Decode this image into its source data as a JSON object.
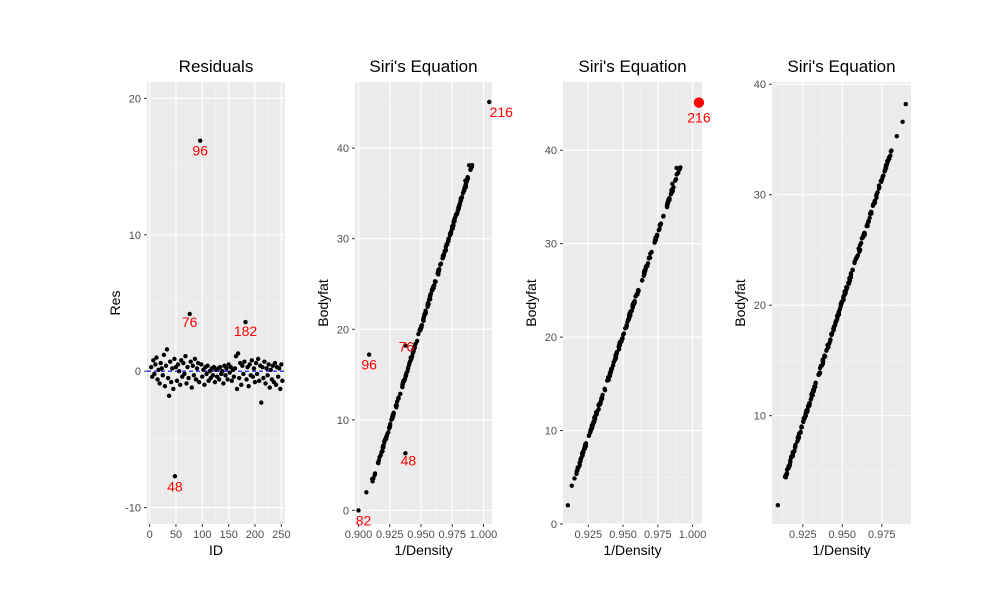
{
  "chart_data": [
    {
      "type": "scatter",
      "title": "Residuals",
      "xlabel": "ID",
      "ylabel": "Res",
      "xlim": [
        -5,
        257
      ],
      "ylim": [
        -11.2,
        21.2
      ],
      "xticks": [
        0,
        50,
        100,
        150,
        200,
        250
      ],
      "yticks": [
        -10,
        0,
        10,
        20
      ],
      "grid": true,
      "hline": {
        "y": 0,
        "style": "dashed",
        "color": "#0000ff"
      },
      "points": [
        {
          "x": 3,
          "y": 0.3
        },
        {
          "x": 5,
          "y": -0.4
        },
        {
          "x": 7,
          "y": 0.8
        },
        {
          "x": 9,
          "y": -0.2
        },
        {
          "x": 11,
          "y": 0.5
        },
        {
          "x": 13,
          "y": 1.0
        },
        {
          "x": 15,
          "y": -0.6
        },
        {
          "x": 17,
          "y": 0.1
        },
        {
          "x": 19,
          "y": -0.9
        },
        {
          "x": 21,
          "y": 0.6
        },
        {
          "x": 23,
          "y": 0.2
        },
        {
          "x": 25,
          "y": -0.3
        },
        {
          "x": 27,
          "y": 1.2
        },
        {
          "x": 29,
          "y": -1.1
        },
        {
          "x": 31,
          "y": 0.4
        },
        {
          "x": 33,
          "y": 1.6
        },
        {
          "x": 35,
          "y": -0.5
        },
        {
          "x": 37,
          "y": -1.8
        },
        {
          "x": 39,
          "y": 0.7
        },
        {
          "x": 41,
          "y": -0.8
        },
        {
          "x": 43,
          "y": 0.2
        },
        {
          "x": 45,
          "y": -1.3
        },
        {
          "x": 47,
          "y": 0.9
        },
        {
          "x": 48,
          "y": -7.7
        },
        {
          "x": 50,
          "y": 0.3
        },
        {
          "x": 52,
          "y": -0.7
        },
        {
          "x": 54,
          "y": 0.5
        },
        {
          "x": 56,
          "y": 0.0
        },
        {
          "x": 58,
          "y": -1.0
        },
        {
          "x": 60,
          "y": 0.8
        },
        {
          "x": 62,
          "y": -0.4
        },
        {
          "x": 64,
          "y": 0.6
        },
        {
          "x": 66,
          "y": -0.2
        },
        {
          "x": 68,
          "y": 1.1
        },
        {
          "x": 70,
          "y": -0.9
        },
        {
          "x": 72,
          "y": 0.3
        },
        {
          "x": 74,
          "y": -0.5
        },
        {
          "x": 76,
          "y": 4.2
        },
        {
          "x": 78,
          "y": 0.7
        },
        {
          "x": 80,
          "y": -1.2
        },
        {
          "x": 82,
          "y": 0.4
        },
        {
          "x": 84,
          "y": -0.3
        },
        {
          "x": 86,
          "y": 0.9
        },
        {
          "x": 88,
          "y": -0.6
        },
        {
          "x": 90,
          "y": 0.2
        },
        {
          "x": 92,
          "y": 0.6
        },
        {
          "x": 94,
          "y": -0.8
        },
        {
          "x": 96,
          "y": 16.9
        },
        {
          "x": 98,
          "y": 0.5
        },
        {
          "x": 100,
          "y": -0.4
        },
        {
          "x": 102,
          "y": 0.1
        },
        {
          "x": 104,
          "y": -1.0
        },
        {
          "x": 106,
          "y": 0.3
        },
        {
          "x": 108,
          "y": -0.2
        },
        {
          "x": 110,
          "y": 0.4
        },
        {
          "x": 112,
          "y": -0.7
        },
        {
          "x": 114,
          "y": 0.0
        },
        {
          "x": 116,
          "y": -0.5
        },
        {
          "x": 118,
          "y": 0.2
        },
        {
          "x": 120,
          "y": -0.3
        },
        {
          "x": 122,
          "y": 0.3
        },
        {
          "x": 124,
          "y": -0.8
        },
        {
          "x": 126,
          "y": 0.1
        },
        {
          "x": 128,
          "y": -0.4
        },
        {
          "x": 130,
          "y": 0.2
        },
        {
          "x": 132,
          "y": -0.6
        },
        {
          "x": 134,
          "y": 0.3
        },
        {
          "x": 136,
          "y": -0.2
        },
        {
          "x": 138,
          "y": 0.0
        },
        {
          "x": 140,
          "y": -0.9
        },
        {
          "x": 142,
          "y": 0.4
        },
        {
          "x": 144,
          "y": -0.3
        },
        {
          "x": 146,
          "y": 0.2
        },
        {
          "x": 148,
          "y": -0.6
        },
        {
          "x": 150,
          "y": 0.5
        },
        {
          "x": 152,
          "y": -0.1
        },
        {
          "x": 154,
          "y": 0.3
        },
        {
          "x": 156,
          "y": -0.7
        },
        {
          "x": 158,
          "y": 0.1
        },
        {
          "x": 160,
          "y": -0.4
        },
        {
          "x": 162,
          "y": 0.2
        },
        {
          "x": 164,
          "y": 1.1
        },
        {
          "x": 166,
          "y": -1.3
        },
        {
          "x": 168,
          "y": 1.3
        },
        {
          "x": 170,
          "y": -0.5
        },
        {
          "x": 172,
          "y": 0.6
        },
        {
          "x": 174,
          "y": -1.0
        },
        {
          "x": 176,
          "y": 0.4
        },
        {
          "x": 178,
          "y": -0.2
        },
        {
          "x": 180,
          "y": 0.7
        },
        {
          "x": 182,
          "y": 3.6
        },
        {
          "x": 184,
          "y": -0.6
        },
        {
          "x": 186,
          "y": 0.3
        },
        {
          "x": 188,
          "y": -1.1
        },
        {
          "x": 190,
          "y": 0.5
        },
        {
          "x": 192,
          "y": -0.3
        },
        {
          "x": 194,
          "y": 0.8
        },
        {
          "x": 196,
          "y": -0.4
        },
        {
          "x": 198,
          "y": 0.2
        },
        {
          "x": 200,
          "y": -0.8
        },
        {
          "x": 202,
          "y": 0.6
        },
        {
          "x": 204,
          "y": -0.2
        },
        {
          "x": 206,
          "y": 0.9
        },
        {
          "x": 208,
          "y": -0.7
        },
        {
          "x": 210,
          "y": 0.4
        },
        {
          "x": 212,
          "y": -2.3
        },
        {
          "x": 214,
          "y": 0.3
        },
        {
          "x": 216,
          "y": -0.5
        },
        {
          "x": 218,
          "y": 0.7
        },
        {
          "x": 220,
          "y": -0.9
        },
        {
          "x": 222,
          "y": 0.2
        },
        {
          "x": 224,
          "y": -0.3
        },
        {
          "x": 226,
          "y": 0.5
        },
        {
          "x": 228,
          "y": -1.2
        },
        {
          "x": 230,
          "y": 0.1
        },
        {
          "x": 232,
          "y": -0.6
        },
        {
          "x": 234,
          "y": 0.4
        },
        {
          "x": 236,
          "y": -0.8
        },
        {
          "x": 238,
          "y": 0.6
        },
        {
          "x": 240,
          "y": -1.0
        },
        {
          "x": 242,
          "y": 0.3
        },
        {
          "x": 244,
          "y": -0.4
        },
        {
          "x": 246,
          "y": 0.2
        },
        {
          "x": 248,
          "y": -1.3
        },
        {
          "x": 250,
          "y": 0.5
        },
        {
          "x": 252,
          "y": -0.7
        }
      ],
      "labels": [
        {
          "text": "96",
          "x": 96,
          "y": 16.9
        },
        {
          "text": "76",
          "x": 76,
          "y": 4.2
        },
        {
          "text": "182",
          "x": 182,
          "y": 3.6
        },
        {
          "text": "48",
          "x": 48,
          "y": -7.7
        }
      ]
    },
    {
      "type": "scatter",
      "title": "Siri's Equation",
      "xlabel": "1/Density",
      "ylabel": "Bodyfat",
      "xlim": [
        0.8972,
        1.0068
      ],
      "ylim": [
        -1.5,
        47.3
      ],
      "xticks": [
        "0.900",
        "0.925",
        "0.950",
        "0.975",
        "1.000"
      ],
      "yticks": [
        0,
        10,
        20,
        30,
        40
      ],
      "grid": true,
      "line": {
        "from": [
          0.911,
          3.2
        ],
        "to": [
          0.991,
          38.2
        ]
      },
      "extra_points": [
        {
          "x": 0.9,
          "y": 0.0
        },
        {
          "x": 0.9063,
          "y": 2.0
        },
        {
          "x": 0.9085,
          "y": 17.2
        },
        {
          "x": 0.9375,
          "y": 18.2
        },
        {
          "x": 0.9375,
          "y": 6.3
        },
        {
          "x": 0.9855,
          "y": 36.4
        },
        {
          "x": 0.9885,
          "y": 38.1
        },
        {
          "x": 1.0046,
          "y": 45.1
        }
      ],
      "labels": [
        {
          "text": "216",
          "x": 1.0046,
          "y": 45.1
        },
        {
          "text": "96",
          "x": 0.9085,
          "y": 17.2
        },
        {
          "text": "76",
          "x": 0.9375,
          "y": 18.2
        },
        {
          "text": "48",
          "x": 0.9375,
          "y": 6.3
        },
        {
          "text": "82",
          "x": 0.9,
          "y": 0.0
        }
      ]
    },
    {
      "type": "scatter",
      "title": "Siri's Equation",
      "xlabel": "1/Density",
      "ylabel": "Bodyfat",
      "xlim": [
        0.9068,
        1.0068
      ],
      "ylim": [
        0.0,
        47.3
      ],
      "xticks": [
        "0.925",
        "0.950",
        "0.975",
        "1.000"
      ],
      "yticks": [
        0,
        10,
        20,
        30,
        40
      ],
      "grid": true,
      "line": {
        "from": [
          0.913,
          4.0
        ],
        "to": [
          0.991,
          38.2
        ]
      },
      "extra_points": [
        {
          "x": 0.9103,
          "y": 2.0
        },
        {
          "x": 0.9855,
          "y": 36.4
        },
        {
          "x": 0.9885,
          "y": 38.1
        }
      ],
      "highlight": {
        "x": 1.0046,
        "y": 45.1,
        "color": "#ff0000"
      },
      "labels": [
        {
          "text": "216",
          "x": 1.0046,
          "y": 45.1
        }
      ]
    },
    {
      "type": "scatter",
      "title": "Siri's Equation",
      "xlabel": "1/Density",
      "ylabel": "Bodyfat",
      "xlim": [
        0.9055,
        0.9935
      ],
      "ylim": [
        0.2,
        40.2
      ],
      "xticks": [
        "0.925",
        "0.950",
        "0.975"
      ],
      "yticks": [
        10,
        20,
        30,
        40
      ],
      "grid": true,
      "line": {
        "from": [
          0.913,
          4.0
        ],
        "to": [
          0.981,
          34.0
        ]
      },
      "extra_points": [
        {
          "x": 0.9092,
          "y": 1.9
        },
        {
          "x": 0.9845,
          "y": 35.3
        },
        {
          "x": 0.9882,
          "y": 36.6
        },
        {
          "x": 0.9902,
          "y": 38.2
        }
      ],
      "labels": []
    }
  ]
}
